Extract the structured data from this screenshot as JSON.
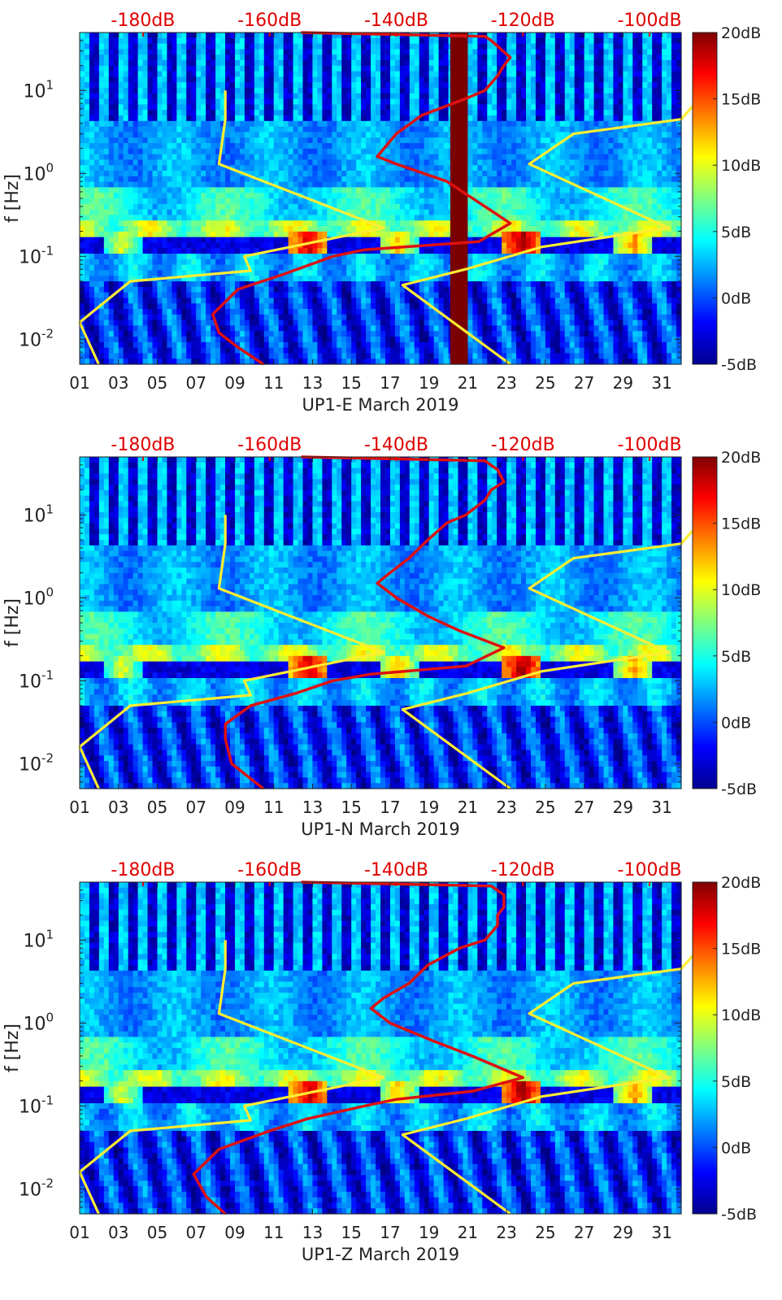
{
  "figure": {
    "colorbar": {
      "ticks": [
        "20dB",
        "15dB",
        "10dB",
        "5dB",
        "0dB",
        "-5dB"
      ],
      "range": [
        -5,
        20
      ],
      "colormap": "jet"
    },
    "top_axis_ticks": [
      "-180dB",
      "-160dB",
      "-140dB",
      "-120dB",
      "-100dB"
    ],
    "top_axis_color": "#e00000",
    "ylabel": "f [Hz]",
    "y_ticks": [
      {
        "base": "10",
        "exp": "1",
        "value": 10
      },
      {
        "base": "10",
        "exp": "0",
        "value": 1
      },
      {
        "base": "10",
        "exp": "-1",
        "value": 0.1
      },
      {
        "base": "10",
        "exp": "-2",
        "value": 0.01
      }
    ],
    "x_ticks": [
      "01",
      "03",
      "05",
      "07",
      "09",
      "11",
      "13",
      "15",
      "17",
      "19",
      "21",
      "23",
      "25",
      "27",
      "29",
      "31"
    ],
    "colors": {
      "nlnm_nhnm": "#ffee33",
      "station_psd": "#dd1111",
      "outage": "#7a0000"
    }
  },
  "chart_data": [
    {
      "type": "heatmap",
      "xlabel": "UP1-E March 2019",
      "ylabel": "f [Hz]",
      "x_range": [
        1,
        32
      ],
      "y_range": [
        0.005,
        50
      ],
      "y_scale": "log",
      "color_range_db": [
        -5,
        20
      ],
      "top_axis_db_range": [
        -190,
        -95
      ],
      "outage_days": [
        20.1,
        21.0
      ],
      "noise_models": {
        "low": [
          [
            10,
            -167
          ],
          [
            4.5,
            -167
          ],
          [
            1.3,
            -168
          ],
          [
            0.22,
            -142
          ],
          [
            0.1,
            -164
          ],
          [
            0.067,
            -163
          ],
          [
            0.05,
            -182
          ],
          [
            0.016,
            -190
          ],
          [
            0.005,
            -187
          ]
        ],
        "high": [
          [
            10,
            -91
          ],
          [
            4.5,
            -95
          ],
          [
            3,
            -112
          ],
          [
            1.3,
            -119
          ],
          [
            0.22,
            -97
          ],
          [
            0.13,
            -117
          ],
          [
            0.07,
            -129
          ],
          [
            0.045,
            -139
          ],
          [
            0.005,
            -122
          ]
        ]
      },
      "station_psd": [
        [
          50,
          -155
        ],
        [
          45,
          -126
        ],
        [
          40,
          -125
        ],
        [
          25,
          -122
        ],
        [
          20,
          -123
        ],
        [
          15,
          -124
        ],
        [
          10,
          -126
        ],
        [
          8,
          -129
        ],
        [
          5,
          -136
        ],
        [
          3,
          -140
        ],
        [
          1.6,
          -143
        ],
        [
          1.3,
          -140
        ],
        [
          0.8,
          -132
        ],
        [
          0.4,
          -126
        ],
        [
          0.25,
          -122
        ],
        [
          0.15,
          -127
        ],
        [
          0.12,
          -145
        ],
        [
          0.1,
          -150
        ],
        [
          0.06,
          -158
        ],
        [
          0.04,
          -165
        ],
        [
          0.02,
          -169
        ],
        [
          0.012,
          -168
        ],
        [
          0.008,
          -165
        ],
        [
          0.005,
          -161
        ]
      ]
    },
    {
      "type": "heatmap",
      "xlabel": "UP1-N March 2019",
      "ylabel": "f [Hz]",
      "x_range": [
        1,
        32
      ],
      "y_range": [
        0.005,
        50
      ],
      "y_scale": "log",
      "color_range_db": [
        -5,
        20
      ],
      "top_axis_db_range": [
        -190,
        -95
      ],
      "noise_models": {
        "low": [
          [
            10,
            -167
          ],
          [
            4.5,
            -167
          ],
          [
            1.3,
            -168
          ],
          [
            0.22,
            -142
          ],
          [
            0.1,
            -164
          ],
          [
            0.067,
            -163
          ],
          [
            0.05,
            -182
          ],
          [
            0.016,
            -190
          ],
          [
            0.005,
            -187
          ]
        ],
        "high": [
          [
            10,
            -91
          ],
          [
            4.5,
            -95
          ],
          [
            3,
            -112
          ],
          [
            1.3,
            -119
          ],
          [
            0.22,
            -97
          ],
          [
            0.13,
            -117
          ],
          [
            0.07,
            -129
          ],
          [
            0.045,
            -139
          ],
          [
            0.005,
            -122
          ]
        ]
      },
      "station_psd": [
        [
          50,
          -155
        ],
        [
          45,
          -126
        ],
        [
          35,
          -124
        ],
        [
          25,
          -123
        ],
        [
          20,
          -125
        ],
        [
          15,
          -126
        ],
        [
          10,
          -129
        ],
        [
          8,
          -132
        ],
        [
          5,
          -135
        ],
        [
          3,
          -138
        ],
        [
          2,
          -141
        ],
        [
          1.5,
          -143
        ],
        [
          1,
          -140
        ],
        [
          0.6,
          -135
        ],
        [
          0.4,
          -130
        ],
        [
          0.25,
          -123
        ],
        [
          0.15,
          -129
        ],
        [
          0.12,
          -144
        ],
        [
          0.1,
          -150
        ],
        [
          0.07,
          -156
        ],
        [
          0.05,
          -163
        ],
        [
          0.03,
          -167
        ],
        [
          0.02,
          -167
        ],
        [
          0.01,
          -166
        ],
        [
          0.005,
          -161
        ]
      ]
    },
    {
      "type": "heatmap",
      "xlabel": "UP1-Z March 2019",
      "ylabel": "f [Hz]",
      "x_range": [
        1,
        32
      ],
      "y_range": [
        0.005,
        50
      ],
      "y_scale": "log",
      "color_range_db": [
        -5,
        20
      ],
      "top_axis_db_range": [
        -190,
        -95
      ],
      "noise_models": {
        "low": [
          [
            10,
            -167
          ],
          [
            4.5,
            -167
          ],
          [
            1.3,
            -168
          ],
          [
            0.22,
            -142
          ],
          [
            0.1,
            -164
          ],
          [
            0.067,
            -163
          ],
          [
            0.05,
            -182
          ],
          [
            0.016,
            -190
          ],
          [
            0.005,
            -187
          ]
        ],
        "high": [
          [
            10,
            -91
          ],
          [
            4.5,
            -95
          ],
          [
            3,
            -112
          ],
          [
            1.3,
            -119
          ],
          [
            0.22,
            -97
          ],
          [
            0.13,
            -117
          ],
          [
            0.07,
            -129
          ],
          [
            0.045,
            -139
          ],
          [
            0.005,
            -122
          ]
        ]
      },
      "station_psd": [
        [
          50,
          -155
        ],
        [
          45,
          -125
        ],
        [
          35,
          -123
        ],
        [
          25,
          -123
        ],
        [
          20,
          -124
        ],
        [
          15,
          -124
        ],
        [
          10,
          -126
        ],
        [
          8,
          -130
        ],
        [
          5,
          -135
        ],
        [
          3,
          -138
        ],
        [
          2,
          -142
        ],
        [
          1.5,
          -144
        ],
        [
          1,
          -141
        ],
        [
          0.6,
          -134
        ],
        [
          0.4,
          -128
        ],
        [
          0.22,
          -120
        ],
        [
          0.15,
          -128
        ],
        [
          0.12,
          -140
        ],
        [
          0.1,
          -145
        ],
        [
          0.07,
          -154
        ],
        [
          0.05,
          -160
        ],
        [
          0.03,
          -168
        ],
        [
          0.015,
          -172
        ],
        [
          0.008,
          -170
        ],
        [
          0.005,
          -167
        ]
      ]
    }
  ]
}
